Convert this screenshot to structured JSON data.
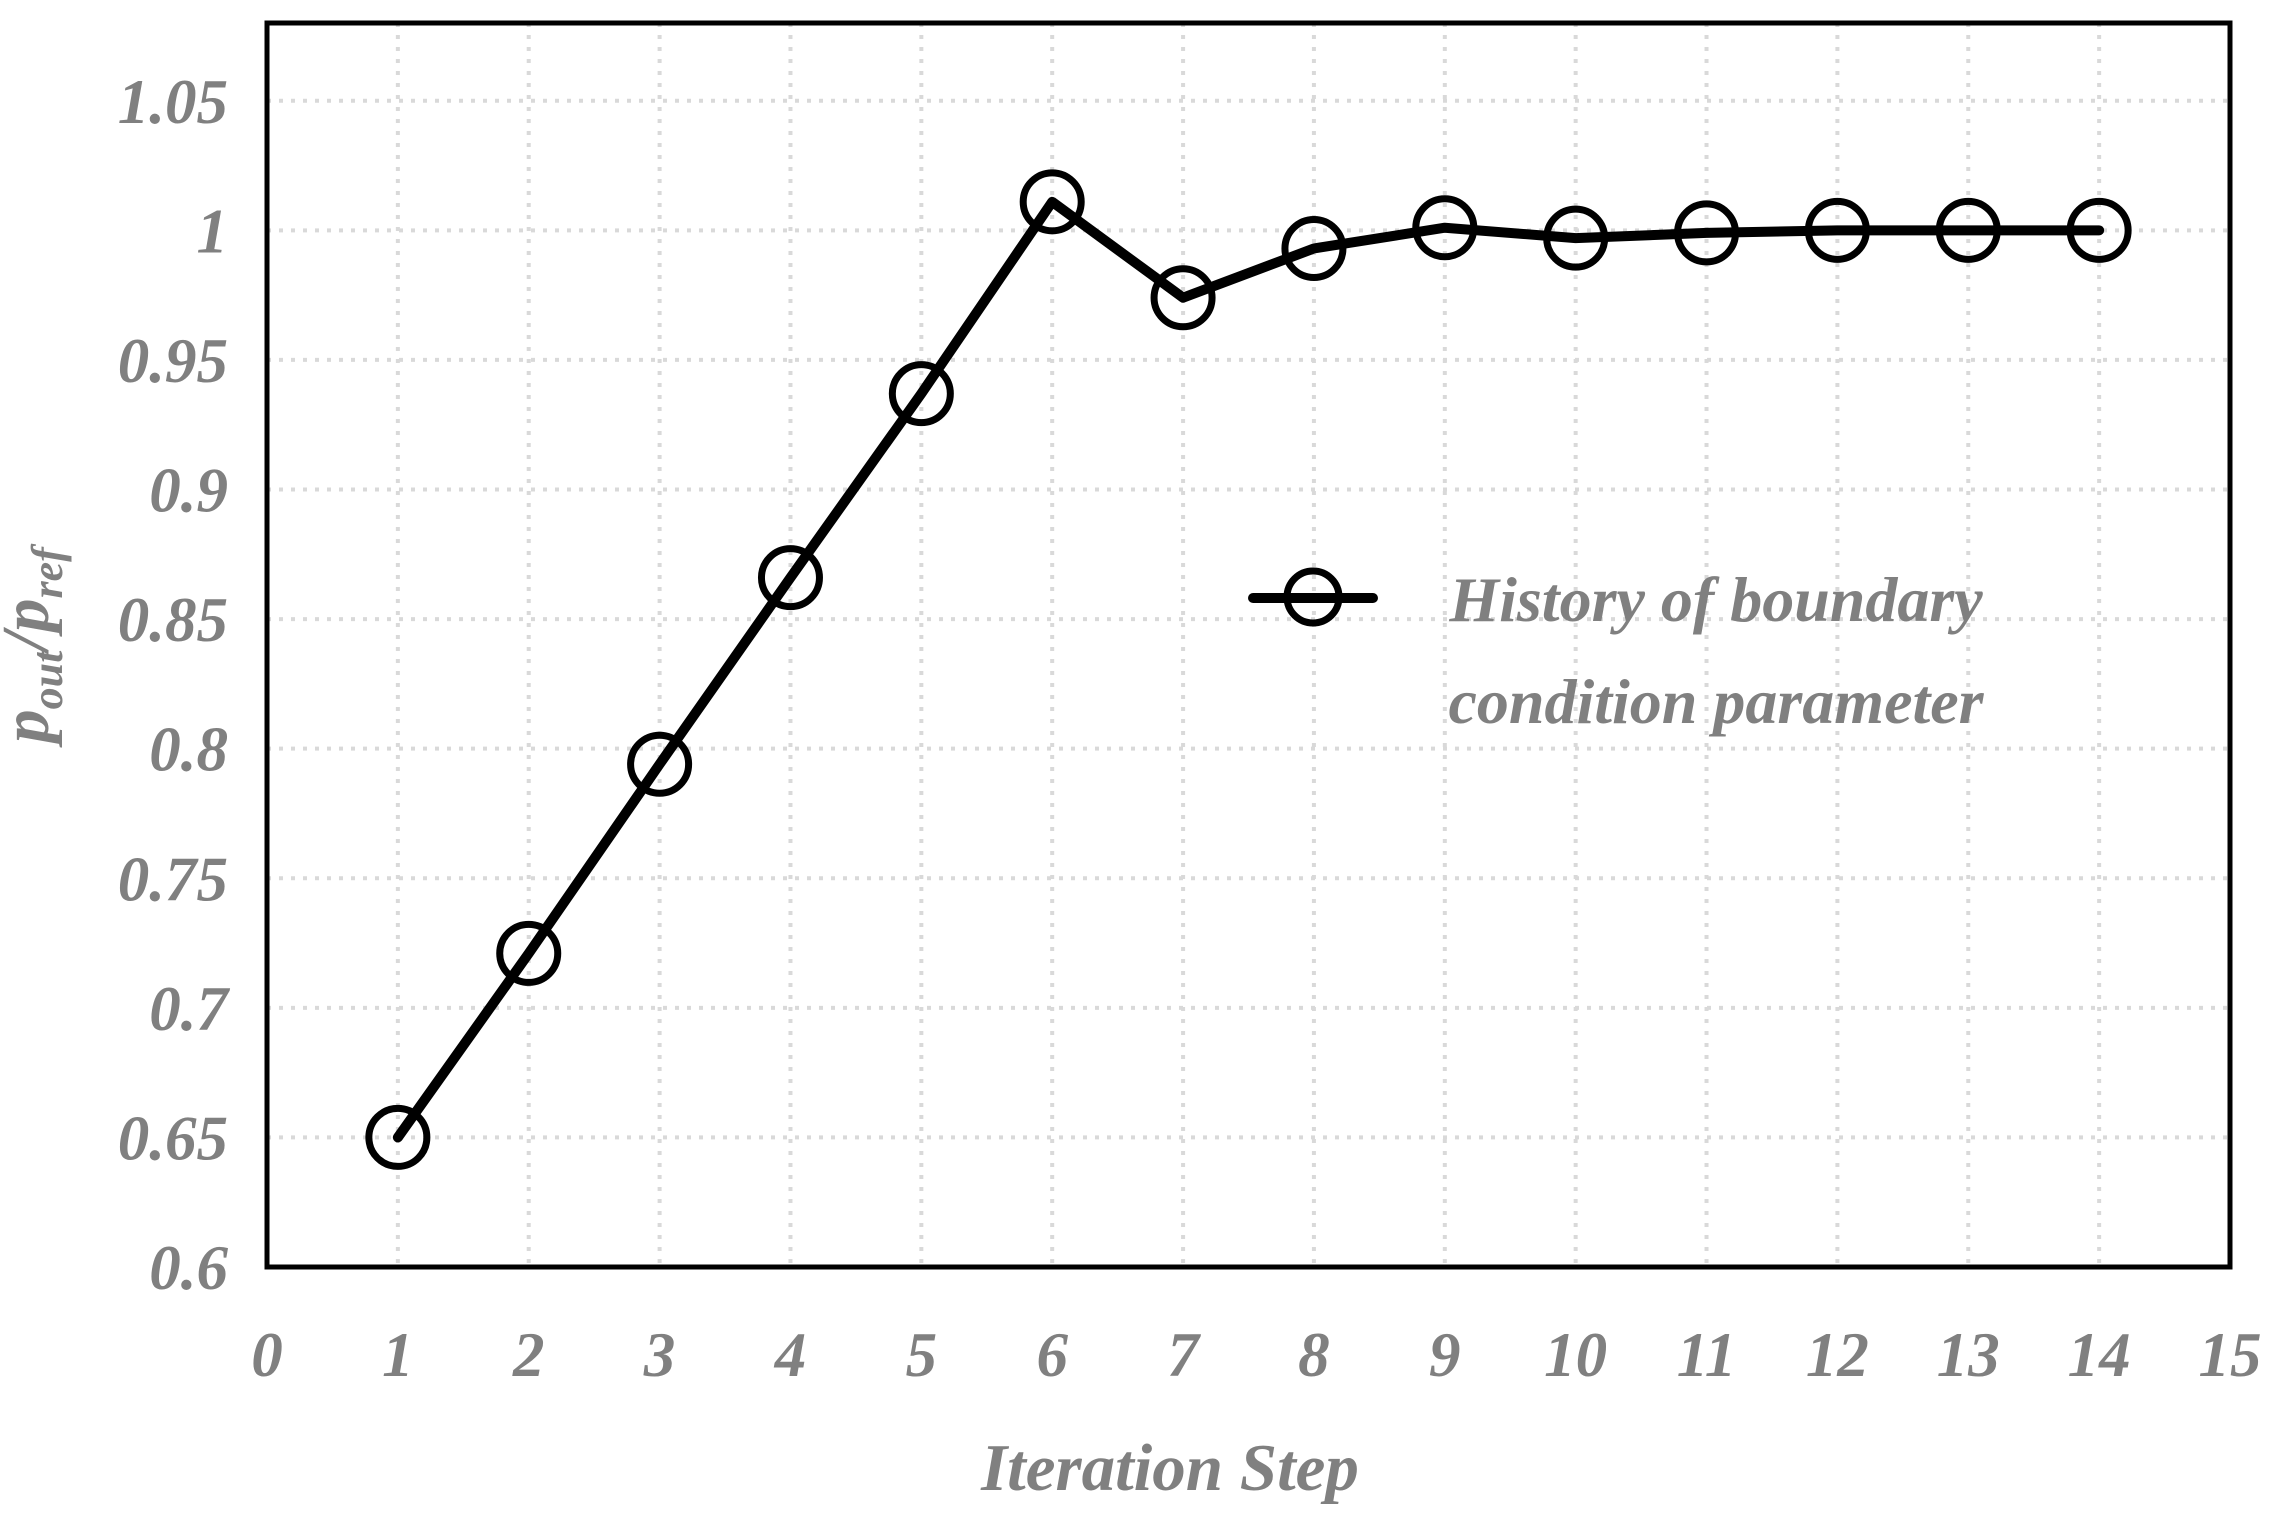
{
  "chart_data": {
    "type": "line",
    "title": "",
    "x": [
      1,
      2,
      3,
      4,
      5,
      6,
      7,
      8,
      9,
      10,
      11,
      12,
      13,
      14
    ],
    "series": [
      {
        "name": "History of boundary condition parameter",
        "values": [
          0.65,
          0.721,
          0.794,
          0.866,
          0.937,
          1.011,
          0.974,
          0.993,
          1.001,
          0.997,
          0.999,
          1.0,
          1.0,
          1.0
        ]
      }
    ],
    "xlabel": "Iteration Step",
    "ylabel": "pout/pref",
    "xlim": [
      0,
      15
    ],
    "ylim": [
      0.6,
      1.08
    ],
    "x_ticks": [
      {
        "v": 0,
        "label": "0"
      },
      {
        "v": 1,
        "label": "1"
      },
      {
        "v": 2,
        "label": "2"
      },
      {
        "v": 3,
        "label": "3"
      },
      {
        "v": 4,
        "label": "4"
      },
      {
        "v": 5,
        "label": "5"
      },
      {
        "v": 6,
        "label": "6"
      },
      {
        "v": 7,
        "label": "7"
      },
      {
        "v": 8,
        "label": "8"
      },
      {
        "v": 9,
        "label": "9"
      },
      {
        "v": 10,
        "label": "10"
      },
      {
        "v": 11,
        "label": "11"
      },
      {
        "v": 12,
        "label": "12"
      },
      {
        "v": 13,
        "label": "13"
      },
      {
        "v": 14,
        "label": "14"
      },
      {
        "v": 15,
        "label": "15"
      }
    ],
    "y_ticks": [
      {
        "v": 0.6,
        "label": "0.6"
      },
      {
        "v": 0.65,
        "label": "0.65"
      },
      {
        "v": 0.7,
        "label": "0.7"
      },
      {
        "v": 0.75,
        "label": "0.75"
      },
      {
        "v": 0.8,
        "label": "0.8"
      },
      {
        "v": 0.85,
        "label": "0.85"
      },
      {
        "v": 0.9,
        "label": "0.9"
      },
      {
        "v": 0.95,
        "label": "0.95"
      },
      {
        "v": 1.0,
        "label": "1"
      },
      {
        "v": 1.05,
        "label": "1.05"
      }
    ],
    "grid": "dotted horizontal and vertical gridlines at every major tick",
    "legend_position": "inside plot, center-right",
    "marker": "open-circle",
    "colors": {
      "series": "#000000",
      "text": "#808080",
      "grid": "#d9d9d9",
      "border": "#000000",
      "background": "#ffffff"
    }
  },
  "axes": {
    "x": {
      "title": "Iteration Step"
    },
    "y": {
      "title_plain": "pout/pref",
      "title_parts": {
        "p1": "p",
        "sub1": "out",
        "p2": "/p",
        "sub2": "ref"
      }
    }
  },
  "legend": {
    "label": "History of boundary condition parameter",
    "lines": [
      "History of boundary",
      "condition parameter"
    ]
  }
}
